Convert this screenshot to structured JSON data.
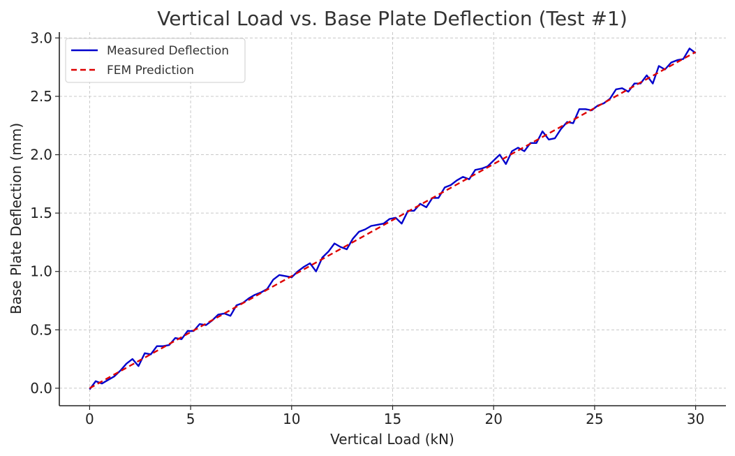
{
  "chart_data": {
    "type": "line",
    "title": "Vertical Load vs. Base Plate Deflection (Test #1)",
    "xlabel": "Vertical Load (kN)",
    "ylabel": "Base Plate Deflection (mm)",
    "xlim": [
      -1.5,
      31.5
    ],
    "ylim": [
      -0.15,
      3.05
    ],
    "xticks": [
      0,
      5,
      10,
      15,
      20,
      25,
      30
    ],
    "xtick_labels": [
      "0",
      "5",
      "10",
      "15",
      "20",
      "25",
      "30"
    ],
    "yticks": [
      0.0,
      0.5,
      1.0,
      1.5,
      2.0,
      2.5,
      3.0
    ],
    "ytick_labels": [
      "0.0",
      "0.5",
      "1.0",
      "1.5",
      "2.0",
      "2.5",
      "3.0"
    ],
    "grid": true,
    "legend_position": "top-left",
    "series": [
      {
        "name": "Measured Deflection",
        "color": "#0000cc",
        "style": "solid",
        "x": [
          0.0,
          0.3,
          0.61,
          0.91,
          1.21,
          1.52,
          1.82,
          2.12,
          2.42,
          2.73,
          3.03,
          3.33,
          3.64,
          3.94,
          4.24,
          4.55,
          4.85,
          5.15,
          5.45,
          5.76,
          6.06,
          6.36,
          6.67,
          6.97,
          7.27,
          7.58,
          7.88,
          8.18,
          8.48,
          8.79,
          9.09,
          9.39,
          9.7,
          10.0,
          10.3,
          10.61,
          10.91,
          11.21,
          11.52,
          11.82,
          12.12,
          12.42,
          12.73,
          13.03,
          13.33,
          13.64,
          13.94,
          14.24,
          14.55,
          14.85,
          15.15,
          15.45,
          15.76,
          16.06,
          16.36,
          16.67,
          16.97,
          17.27,
          17.58,
          17.88,
          18.18,
          18.48,
          18.79,
          19.09,
          19.39,
          19.7,
          20.0,
          20.3,
          20.61,
          20.91,
          21.21,
          21.52,
          21.82,
          22.12,
          22.42,
          22.73,
          23.03,
          23.33,
          23.64,
          23.94,
          24.24,
          24.55,
          24.85,
          25.15,
          25.45,
          25.76,
          26.06,
          26.36,
          26.67,
          26.97,
          27.27,
          27.58,
          27.88,
          28.18,
          28.48,
          28.79,
          29.09,
          29.39,
          29.7,
          30.0
        ],
        "y": [
          -0.01,
          0.06,
          0.04,
          0.07,
          0.1,
          0.15,
          0.21,
          0.25,
          0.19,
          0.3,
          0.29,
          0.36,
          0.36,
          0.37,
          0.43,
          0.42,
          0.49,
          0.49,
          0.55,
          0.54,
          0.58,
          0.63,
          0.64,
          0.62,
          0.71,
          0.73,
          0.77,
          0.8,
          0.82,
          0.85,
          0.93,
          0.97,
          0.96,
          0.95,
          1.0,
          1.04,
          1.07,
          1.0,
          1.12,
          1.17,
          1.24,
          1.21,
          1.19,
          1.28,
          1.34,
          1.36,
          1.39,
          1.4,
          1.41,
          1.45,
          1.46,
          1.41,
          1.52,
          1.52,
          1.58,
          1.55,
          1.63,
          1.63,
          1.72,
          1.74,
          1.78,
          1.81,
          1.79,
          1.87,
          1.88,
          1.9,
          1.95,
          2.0,
          1.92,
          2.03,
          2.06,
          2.03,
          2.1,
          2.1,
          2.2,
          2.13,
          2.14,
          2.22,
          2.28,
          2.27,
          2.39,
          2.39,
          2.38,
          2.42,
          2.44,
          2.48,
          2.56,
          2.57,
          2.54,
          2.61,
          2.61,
          2.68,
          2.61,
          2.76,
          2.73,
          2.79,
          2.81,
          2.82,
          2.91,
          2.87
        ]
      },
      {
        "name": "FEM Prediction",
        "color": "#dd0000",
        "style": "dashed",
        "x": [
          0,
          30
        ],
        "y": [
          0.0,
          2.88
        ]
      }
    ]
  }
}
